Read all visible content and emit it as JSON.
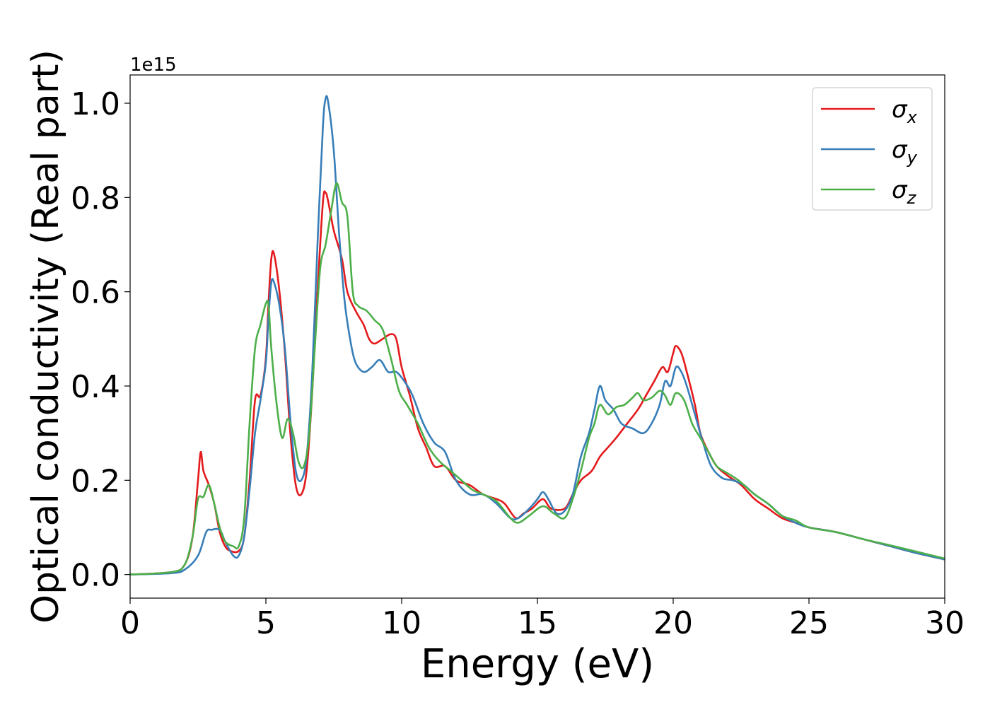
{
  "chart_data": {
    "type": "line",
    "title": "",
    "xlabel": "Energy (eV)",
    "ylabel": "Optical conductivity (Real part)",
    "y_offset_text": "1e15",
    "xlim": [
      0,
      30
    ],
    "ylim": [
      -0.05,
      1.06
    ],
    "x_ticks": [
      0,
      5,
      10,
      15,
      20,
      25,
      30
    ],
    "x_tick_labels": [
      "0",
      "5",
      "10",
      "15",
      "20",
      "25",
      "30"
    ],
    "y_ticks": [
      0.0,
      0.2,
      0.4,
      0.6,
      0.8,
      1.0
    ],
    "y_tick_labels": [
      "0.0",
      "0.2",
      "0.4",
      "0.6",
      "0.8",
      "1.0"
    ],
    "grid": false,
    "legend_position": "top-right",
    "series": [
      {
        "name": "σx",
        "symbol": "σ",
        "subscript": "x",
        "color": "#e41a1c",
        "points": [
          [
            0,
            0.0
          ],
          [
            1.5,
            0.005
          ],
          [
            2.0,
            0.02
          ],
          [
            2.3,
            0.08
          ],
          [
            2.5,
            0.2
          ],
          [
            2.6,
            0.26
          ],
          [
            2.7,
            0.22
          ],
          [
            2.9,
            0.19
          ],
          [
            3.1,
            0.15
          ],
          [
            3.3,
            0.09
          ],
          [
            3.5,
            0.06
          ],
          [
            3.7,
            0.05
          ],
          [
            4.0,
            0.05
          ],
          [
            4.2,
            0.08
          ],
          [
            4.4,
            0.2
          ],
          [
            4.6,
            0.37
          ],
          [
            4.8,
            0.38
          ],
          [
            5.0,
            0.46
          ],
          [
            5.1,
            0.58
          ],
          [
            5.2,
            0.67
          ],
          [
            5.3,
            0.68
          ],
          [
            5.5,
            0.6
          ],
          [
            5.7,
            0.47
          ],
          [
            5.9,
            0.3
          ],
          [
            6.1,
            0.19
          ],
          [
            6.3,
            0.17
          ],
          [
            6.5,
            0.22
          ],
          [
            6.7,
            0.38
          ],
          [
            6.9,
            0.6
          ],
          [
            7.1,
            0.79
          ],
          [
            7.2,
            0.81
          ],
          [
            7.3,
            0.79
          ],
          [
            7.5,
            0.73
          ],
          [
            7.8,
            0.67
          ],
          [
            8.0,
            0.6
          ],
          [
            8.3,
            0.56
          ],
          [
            8.6,
            0.53
          ],
          [
            8.8,
            0.5
          ],
          [
            9.0,
            0.49
          ],
          [
            9.3,
            0.5
          ],
          [
            9.6,
            0.51
          ],
          [
            9.8,
            0.5
          ],
          [
            10.0,
            0.44
          ],
          [
            10.3,
            0.38
          ],
          [
            10.6,
            0.31
          ],
          [
            10.9,
            0.27
          ],
          [
            11.2,
            0.23
          ],
          [
            11.6,
            0.23
          ],
          [
            12.0,
            0.2
          ],
          [
            12.5,
            0.19
          ],
          [
            13.0,
            0.17
          ],
          [
            13.5,
            0.16
          ],
          [
            13.8,
            0.15
          ],
          [
            14.2,
            0.12
          ],
          [
            14.5,
            0.13
          ],
          [
            14.8,
            0.14
          ],
          [
            15.2,
            0.16
          ],
          [
            15.5,
            0.14
          ],
          [
            16.0,
            0.14
          ],
          [
            16.3,
            0.17
          ],
          [
            16.6,
            0.2
          ],
          [
            17.0,
            0.22
          ],
          [
            17.3,
            0.25
          ],
          [
            17.6,
            0.27
          ],
          [
            17.9,
            0.29
          ],
          [
            18.3,
            0.32
          ],
          [
            18.7,
            0.35
          ],
          [
            19.0,
            0.38
          ],
          [
            19.3,
            0.41
          ],
          [
            19.6,
            0.44
          ],
          [
            19.8,
            0.43
          ],
          [
            20.0,
            0.47
          ],
          [
            20.1,
            0.485
          ],
          [
            20.3,
            0.47
          ],
          [
            20.5,
            0.43
          ],
          [
            20.8,
            0.36
          ],
          [
            21.0,
            0.3
          ],
          [
            21.3,
            0.26
          ],
          [
            21.6,
            0.23
          ],
          [
            22.0,
            0.21
          ],
          [
            22.5,
            0.19
          ],
          [
            23.0,
            0.16
          ],
          [
            23.5,
            0.14
          ],
          [
            24.0,
            0.12
          ],
          [
            24.5,
            0.11
          ],
          [
            25.0,
            0.1
          ],
          [
            26.0,
            0.09
          ],
          [
            27.0,
            0.075
          ],
          [
            28.0,
            0.06
          ],
          [
            29.0,
            0.045
          ],
          [
            30.0,
            0.032
          ]
        ]
      },
      {
        "name": "σy",
        "symbol": "σ",
        "subscript": "y",
        "color": "#377eb8",
        "points": [
          [
            0,
            0.0
          ],
          [
            1.5,
            0.003
          ],
          [
            2.0,
            0.01
          ],
          [
            2.5,
            0.04
          ],
          [
            2.8,
            0.09
          ],
          [
            3.0,
            0.095
          ],
          [
            3.3,
            0.095
          ],
          [
            3.5,
            0.07
          ],
          [
            3.8,
            0.04
          ],
          [
            4.0,
            0.04
          ],
          [
            4.2,
            0.08
          ],
          [
            4.4,
            0.18
          ],
          [
            4.6,
            0.3
          ],
          [
            4.8,
            0.37
          ],
          [
            5.0,
            0.45
          ],
          [
            5.1,
            0.55
          ],
          [
            5.2,
            0.62
          ],
          [
            5.3,
            0.62
          ],
          [
            5.5,
            0.57
          ],
          [
            5.7,
            0.48
          ],
          [
            5.9,
            0.33
          ],
          [
            6.1,
            0.22
          ],
          [
            6.3,
            0.2
          ],
          [
            6.5,
            0.25
          ],
          [
            6.7,
            0.42
          ],
          [
            6.9,
            0.7
          ],
          [
            7.1,
            0.95
          ],
          [
            7.2,
            1.01
          ],
          [
            7.3,
            1.0
          ],
          [
            7.5,
            0.9
          ],
          [
            7.7,
            0.72
          ],
          [
            7.9,
            0.58
          ],
          [
            8.1,
            0.5
          ],
          [
            8.3,
            0.45
          ],
          [
            8.6,
            0.43
          ],
          [
            8.9,
            0.44
          ],
          [
            9.2,
            0.455
          ],
          [
            9.5,
            0.43
          ],
          [
            9.8,
            0.43
          ],
          [
            10.1,
            0.41
          ],
          [
            10.4,
            0.38
          ],
          [
            10.8,
            0.32
          ],
          [
            11.2,
            0.28
          ],
          [
            11.6,
            0.26
          ],
          [
            12.0,
            0.2
          ],
          [
            12.5,
            0.17
          ],
          [
            13.0,
            0.17
          ],
          [
            13.5,
            0.15
          ],
          [
            14.0,
            0.12
          ],
          [
            14.3,
            0.12
          ],
          [
            14.7,
            0.14
          ],
          [
            15.0,
            0.16
          ],
          [
            15.2,
            0.175
          ],
          [
            15.4,
            0.16
          ],
          [
            15.7,
            0.13
          ],
          [
            16.0,
            0.135
          ],
          [
            16.3,
            0.17
          ],
          [
            16.6,
            0.25
          ],
          [
            16.9,
            0.3
          ],
          [
            17.1,
            0.35
          ],
          [
            17.3,
            0.4
          ],
          [
            17.5,
            0.37
          ],
          [
            17.8,
            0.35
          ],
          [
            18.1,
            0.32
          ],
          [
            18.5,
            0.31
          ],
          [
            18.9,
            0.3
          ],
          [
            19.2,
            0.32
          ],
          [
            19.5,
            0.36
          ],
          [
            19.7,
            0.41
          ],
          [
            19.9,
            0.4
          ],
          [
            20.1,
            0.44
          ],
          [
            20.3,
            0.43
          ],
          [
            20.5,
            0.4
          ],
          [
            20.8,
            0.34
          ],
          [
            21.1,
            0.28
          ],
          [
            21.4,
            0.23
          ],
          [
            21.8,
            0.205
          ],
          [
            22.2,
            0.2
          ],
          [
            22.6,
            0.19
          ],
          [
            23.0,
            0.17
          ],
          [
            23.5,
            0.15
          ],
          [
            24.0,
            0.125
          ],
          [
            24.5,
            0.11
          ],
          [
            25.0,
            0.1
          ],
          [
            26.0,
            0.09
          ],
          [
            27.0,
            0.075
          ],
          [
            28.0,
            0.06
          ],
          [
            29.0,
            0.045
          ],
          [
            30.0,
            0.032
          ]
        ]
      },
      {
        "name": "σz",
        "symbol": "σ",
        "subscript": "z",
        "color": "#4daf4a",
        "points": [
          [
            0,
            0.0
          ],
          [
            1.5,
            0.005
          ],
          [
            2.0,
            0.02
          ],
          [
            2.3,
            0.08
          ],
          [
            2.5,
            0.16
          ],
          [
            2.7,
            0.165
          ],
          [
            2.9,
            0.19
          ],
          [
            3.1,
            0.15
          ],
          [
            3.3,
            0.1
          ],
          [
            3.5,
            0.07
          ],
          [
            3.8,
            0.06
          ],
          [
            4.0,
            0.06
          ],
          [
            4.2,
            0.12
          ],
          [
            4.4,
            0.32
          ],
          [
            4.6,
            0.48
          ],
          [
            4.8,
            0.53
          ],
          [
            5.0,
            0.575
          ],
          [
            5.1,
            0.57
          ],
          [
            5.2,
            0.48
          ],
          [
            5.4,
            0.36
          ],
          [
            5.6,
            0.29
          ],
          [
            5.8,
            0.33
          ],
          [
            6.0,
            0.3
          ],
          [
            6.2,
            0.24
          ],
          [
            6.4,
            0.23
          ],
          [
            6.6,
            0.3
          ],
          [
            6.8,
            0.48
          ],
          [
            7.0,
            0.65
          ],
          [
            7.2,
            0.7
          ],
          [
            7.4,
            0.77
          ],
          [
            7.6,
            0.83
          ],
          [
            7.8,
            0.79
          ],
          [
            8.0,
            0.76
          ],
          [
            8.2,
            0.6
          ],
          [
            8.4,
            0.57
          ],
          [
            8.7,
            0.56
          ],
          [
            9.0,
            0.54
          ],
          [
            9.3,
            0.52
          ],
          [
            9.6,
            0.46
          ],
          [
            9.9,
            0.39
          ],
          [
            10.2,
            0.36
          ],
          [
            10.6,
            0.32
          ],
          [
            11.0,
            0.27
          ],
          [
            11.4,
            0.24
          ],
          [
            11.8,
            0.22
          ],
          [
            12.2,
            0.2
          ],
          [
            12.6,
            0.18
          ],
          [
            13.0,
            0.17
          ],
          [
            13.5,
            0.155
          ],
          [
            14.0,
            0.12
          ],
          [
            14.3,
            0.11
          ],
          [
            14.7,
            0.125
          ],
          [
            15.2,
            0.145
          ],
          [
            15.6,
            0.13
          ],
          [
            16.0,
            0.12
          ],
          [
            16.3,
            0.16
          ],
          [
            16.6,
            0.22
          ],
          [
            16.9,
            0.29
          ],
          [
            17.1,
            0.32
          ],
          [
            17.3,
            0.36
          ],
          [
            17.6,
            0.34
          ],
          [
            17.9,
            0.355
          ],
          [
            18.2,
            0.36
          ],
          [
            18.5,
            0.375
          ],
          [
            18.7,
            0.385
          ],
          [
            18.9,
            0.37
          ],
          [
            19.2,
            0.375
          ],
          [
            19.5,
            0.39
          ],
          [
            19.7,
            0.38
          ],
          [
            19.9,
            0.36
          ],
          [
            20.1,
            0.385
          ],
          [
            20.4,
            0.37
          ],
          [
            20.7,
            0.32
          ],
          [
            21.0,
            0.29
          ],
          [
            21.3,
            0.26
          ],
          [
            21.6,
            0.23
          ],
          [
            22.0,
            0.215
          ],
          [
            22.4,
            0.2
          ],
          [
            23.0,
            0.17
          ],
          [
            23.5,
            0.15
          ],
          [
            24.0,
            0.125
          ],
          [
            24.5,
            0.115
          ],
          [
            25.0,
            0.1
          ],
          [
            26.0,
            0.09
          ],
          [
            27.0,
            0.075
          ],
          [
            28.0,
            0.062
          ],
          [
            29.0,
            0.048
          ],
          [
            30.0,
            0.034
          ]
        ]
      }
    ]
  }
}
